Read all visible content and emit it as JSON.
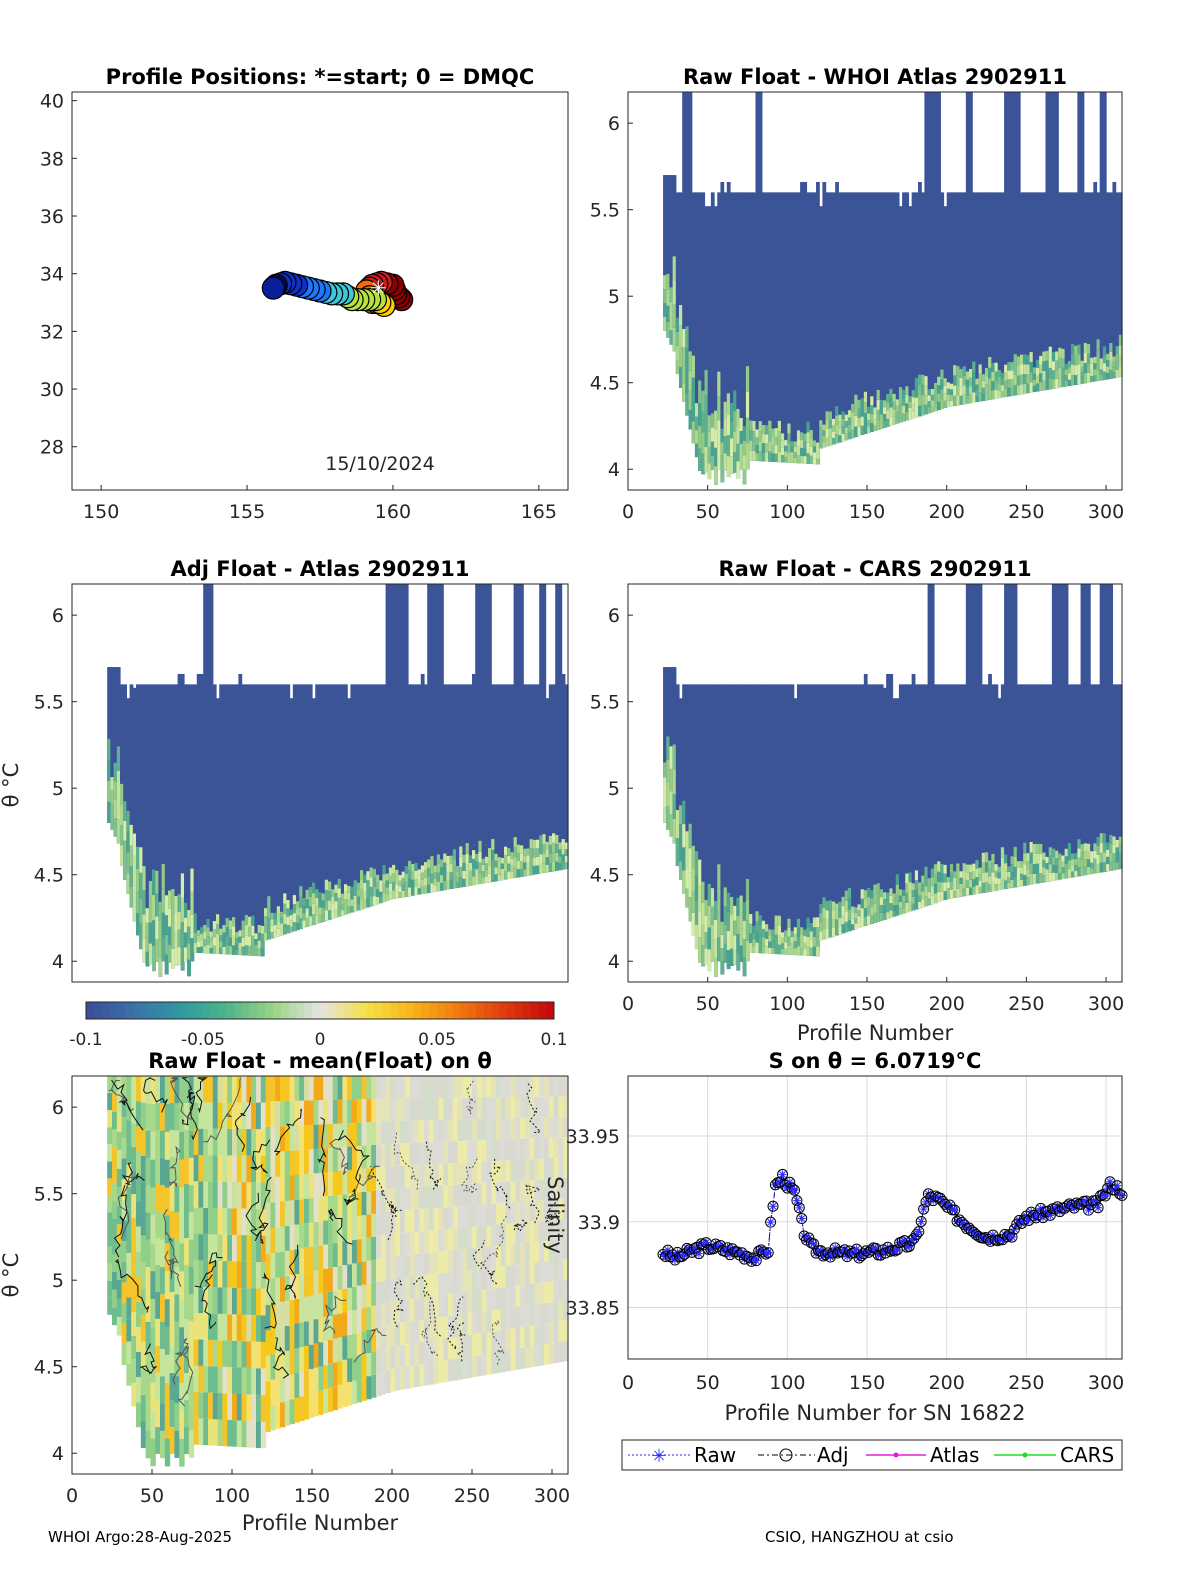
{
  "footer": {
    "left": "WHOI Argo:28-Aug-2025",
    "right": "CSIO, HANGZHOU at csio"
  },
  "chart_data": [
    {
      "id": "positions",
      "type": "scatter",
      "title": "Profile Positions: *=start; 0 = DMQC",
      "xlim": [
        149,
        166
      ],
      "ylim": [
        26.5,
        40.3
      ],
      "xticks": [
        "150",
        "155",
        "160",
        "165"
      ],
      "yticks": [
        "28",
        "30",
        "32",
        "34",
        "36",
        "38",
        "40"
      ],
      "annotation": "15/10/2024",
      "start_marker": [
        159.5,
        33.5
      ],
      "colors": [
        "#8b0000",
        "#c81e1e",
        "#ff6a00",
        "#ffd000",
        "#b7e23c",
        "#3ec7d6",
        "#1e78ff",
        "#1030c8",
        "#0a1e9a"
      ],
      "track": [
        [
          160.3,
          33.1
        ],
        [
          160.1,
          33.3
        ],
        [
          160.0,
          33.6
        ],
        [
          159.6,
          33.7
        ],
        [
          159.3,
          33.6
        ],
        [
          159.1,
          33.4
        ],
        [
          159.3,
          33.0
        ],
        [
          159.6,
          33.0
        ],
        [
          159.7,
          32.9
        ],
        [
          159.4,
          33.1
        ],
        [
          159.0,
          33.1
        ],
        [
          158.6,
          33.1
        ],
        [
          158.3,
          33.3
        ],
        [
          157.9,
          33.3
        ],
        [
          157.5,
          33.4
        ],
        [
          157.1,
          33.5
        ],
        [
          156.7,
          33.6
        ],
        [
          156.3,
          33.7
        ],
        [
          156.0,
          33.6
        ],
        [
          155.9,
          33.5
        ]
      ]
    },
    {
      "id": "raw-whoi",
      "type": "heatmap",
      "title": "Raw Float - WHOI Atlas  2902911",
      "xlim": [
        0,
        310
      ],
      "ylim": [
        3.88,
        6.18
      ],
      "xticks": [
        "0",
        "50",
        "100",
        "150",
        "200",
        "250",
        "300"
      ],
      "yticks": [
        "4",
        "4.5",
        "5",
        "5.5",
        "6"
      ],
      "xlabel": "",
      "ylabel": ""
    },
    {
      "id": "adj-atlas",
      "type": "heatmap",
      "title": "Adj Float - Atlas  2902911",
      "xlim": [
        0,
        310
      ],
      "ylim": [
        3.88,
        6.18
      ],
      "xticks": [],
      "yticks": [
        "4",
        "4.5",
        "5",
        "5.5",
        "6"
      ],
      "xlabel": "",
      "ylabel": "θ °C"
    },
    {
      "id": "raw-cars",
      "type": "heatmap",
      "title": "Raw Float - CARS  2902911",
      "xlim": [
        0,
        310
      ],
      "ylim": [
        3.88,
        6.18
      ],
      "xticks": [
        "0",
        "50",
        "100",
        "150",
        "200",
        "250",
        "300"
      ],
      "yticks": [
        "4",
        "4.5",
        "5",
        "5.5",
        "6"
      ],
      "xlabel": "Profile Number",
      "ylabel": ""
    },
    {
      "id": "colorbar",
      "type": "heatmap",
      "range": [
        -0.1,
        0.1
      ],
      "tick_labels": [
        "-0.1",
        "-0.05",
        "0",
        "0.05",
        "0.1"
      ],
      "colors": [
        "#3b4f97",
        "#3a73a8",
        "#2f9aa0",
        "#4fb58a",
        "#9bd486",
        "#e3e3e3",
        "#f5e04a",
        "#f7b417",
        "#f07a10",
        "#e03b10",
        "#c40a0a"
      ]
    },
    {
      "id": "anomaly",
      "type": "heatmap",
      "title": "Raw Float - mean(Float) on θ",
      "xlim": [
        0,
        310
      ],
      "ylim": [
        3.88,
        6.18
      ],
      "xticks": [
        "0",
        "50",
        "100",
        "150",
        "200",
        "250",
        "300"
      ],
      "yticks": [
        "4",
        "4.5",
        "5",
        "5.5",
        "6"
      ],
      "xlabel": "Profile Number",
      "ylabel": "θ °C"
    },
    {
      "id": "salinity",
      "type": "line",
      "title": "S on θ = 6.0719°C",
      "xlim": [
        0,
        310
      ],
      "ylim": [
        33.82,
        33.985
      ],
      "xticks": [
        "0",
        "50",
        "100",
        "150",
        "200",
        "250",
        "300"
      ],
      "yticks": [
        "33.85",
        "33.9",
        "33.95"
      ],
      "xlabel": "Profile Number for SN 16822",
      "ylabel": "Salinity",
      "anchors_x": [
        22,
        30,
        40,
        50,
        60,
        70,
        80,
        88,
        92,
        97,
        101,
        105,
        110,
        115,
        120,
        140,
        160,
        180,
        188,
        195,
        210,
        225,
        240,
        250,
        265,
        280,
        295,
        303,
        310
      ],
      "anchors_y": [
        33.882,
        33.879,
        33.883,
        33.886,
        33.884,
        33.882,
        33.879,
        33.884,
        33.92,
        33.926,
        33.921,
        33.916,
        33.895,
        33.885,
        33.883,
        33.881,
        33.883,
        33.888,
        33.915,
        33.913,
        33.9,
        33.891,
        33.893,
        33.903,
        33.906,
        33.909,
        33.91,
        33.922,
        33.918
      ],
      "legend": [
        {
          "label": "Raw",
          "color": "#2b2bff"
        },
        {
          "label": "Adj",
          "color": "#000000"
        },
        {
          "label": "Atlas",
          "color": "#e01ee0"
        },
        {
          "label": "CARS",
          "color": "#22dd22"
        }
      ]
    }
  ]
}
